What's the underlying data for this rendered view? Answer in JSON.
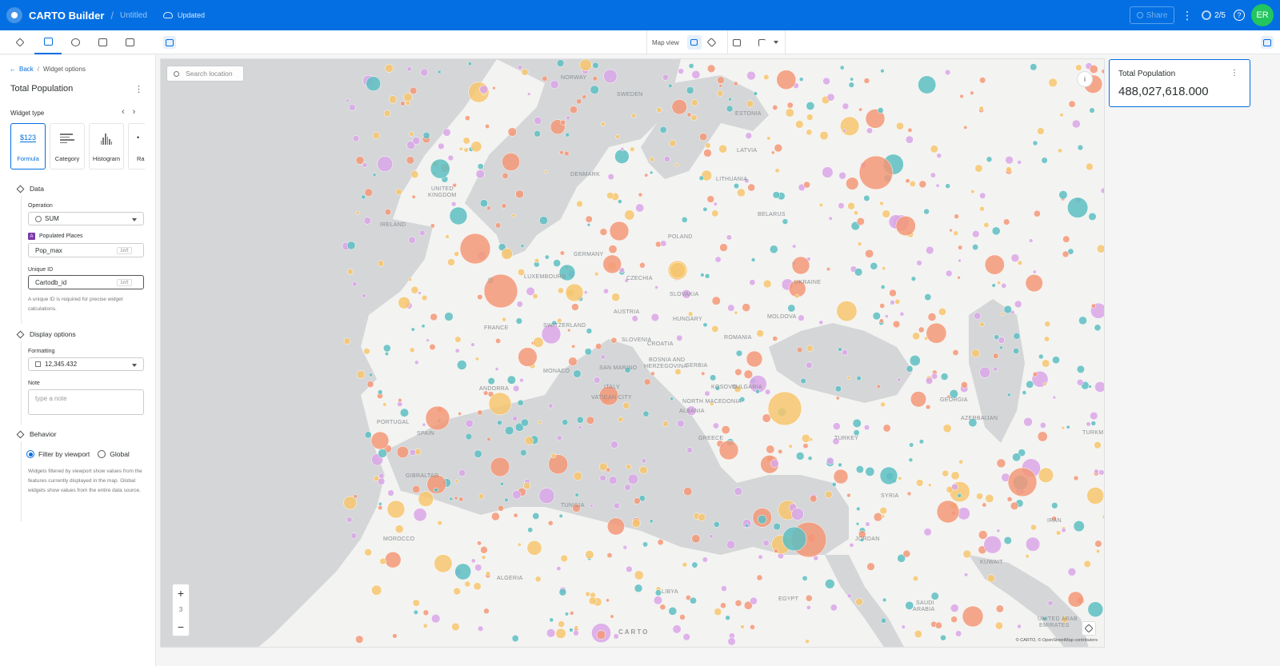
{
  "header": {
    "app_title": "CARTO Builder",
    "separator": "/",
    "map_title": "Untitled",
    "save_status": "Updated",
    "share_label": "Share",
    "credits": "2/5",
    "user_initials": "ER",
    "colors": {
      "brand": "#036fe2",
      "avatar": "#22c55e"
    }
  },
  "toolbar": {
    "map_view_label": "Map view",
    "icons": [
      "layers-icon",
      "widgets-icon",
      "interactions-icon",
      "sql-icon",
      "basemap-icon"
    ]
  },
  "left_panel": {
    "back_label": "Back",
    "breadcrumb_sep": "/",
    "breadcrumb_current": "Widget options",
    "widget_title": "Total Population",
    "widget_type_label": "Widget type",
    "widget_types": [
      {
        "label": "Formula",
        "glyph": "$123"
      },
      {
        "label": "Category"
      },
      {
        "label": "Histogram"
      },
      {
        "label": "Ra",
        "glyph": "•"
      }
    ],
    "data_section": {
      "title": "Data",
      "operation_label": "Operation",
      "operation_value": "SUM",
      "source_badge": "A",
      "source_name": "Populated Places",
      "column_value": "Pop_max",
      "column_type": "int",
      "unique_id_label": "Unique ID",
      "unique_id_value": "Cartodb_id",
      "unique_id_type": "int",
      "unique_id_help": "A unique ID is required for precise widget calculations."
    },
    "display_section": {
      "title": "Display options",
      "formatting_label": "Formatting",
      "formatting_value": "12,345.432",
      "note_label": "Note",
      "note_placeholder": "type a note"
    },
    "behavior_section": {
      "title": "Behavior",
      "filter_viewport_label": "Filter by viewport",
      "global_label": "Global",
      "help": "Widgets filtered by viewport show values from the features currently displayed in the map. Global widgets show values from the entire data source."
    }
  },
  "map": {
    "search_placeholder": "Search location",
    "zoom_in": "+",
    "zoom_level": "3",
    "zoom_out": "−",
    "logo": "CARTO",
    "attribution": "© CARTO, © OpenStreetMap contributors",
    "point_colors": [
      "#f6c56f",
      "#5dbec2",
      "#f39878",
      "#d9a6e8",
      "#8aa2e0",
      "#777777"
    ],
    "labels": {
      "norway": "NORWAY",
      "sweden": "SWEDEN",
      "estonia": "ESTONIA",
      "latvia": "LATVIA",
      "denmark": "DENMARK",
      "lithuania": "LITHUANIA",
      "uk": "UNITED\nKINGDOM",
      "ireland": "IRELAND",
      "belarus": "BELARUS",
      "poland": "POLAND",
      "germany": "GERMANY",
      "luxembourg": "LUXEMBOURG",
      "czechia": "CZECHIA",
      "slovakia": "SLOVAKIA",
      "ukraine": "UKRAINE",
      "austria": "AUSTRIA",
      "hungary": "HUNGARY",
      "moldova": "MOLDOVA",
      "france": "FRANCE",
      "switzerland": "SWITZERLAND",
      "slovenia": "SLOVENIA",
      "croatia": "CROATIA",
      "romania": "ROMANIA",
      "bosnia": "BOSNIA AND\nHERZEGOVINA",
      "serbia": "SERBIA",
      "monaco": "MONACO",
      "san_marino": "SAN MARINO",
      "andorra": "ANDORRA",
      "italy": "ITALY",
      "vatican": "VATICAN CITY",
      "kosovo": "KOSOVO",
      "bulgaria": "BULGARIA",
      "north_macedonia": "NORTH MACEDONIA",
      "albania": "ALBANIA",
      "georgia": "GEORGIA",
      "azerbaijan": "AZERBAIJAN",
      "portugal": "PORTUGAL",
      "spain": "SPAIN",
      "greece": "GREECE",
      "turkey": "TURKEY",
      "turkm": "TURKM",
      "gibraltar": "GIBRALTAR",
      "tunisia": "TUNISIA",
      "syria": "SYRIA",
      "iran": "IRAN",
      "morocco": "MOROCCO",
      "jordan": "JORDAN",
      "kuwait": "KUWAIT",
      "algeria": "ALGERIA",
      "libya": "LIBYA",
      "egypt": "EGYPT",
      "saudi": "SAUDI\nARABIA",
      "uae": "UNITED ARAB\nEMIRATES"
    }
  },
  "widget_panel": {
    "title": "Total Population",
    "value": "488,027,618.000"
  }
}
